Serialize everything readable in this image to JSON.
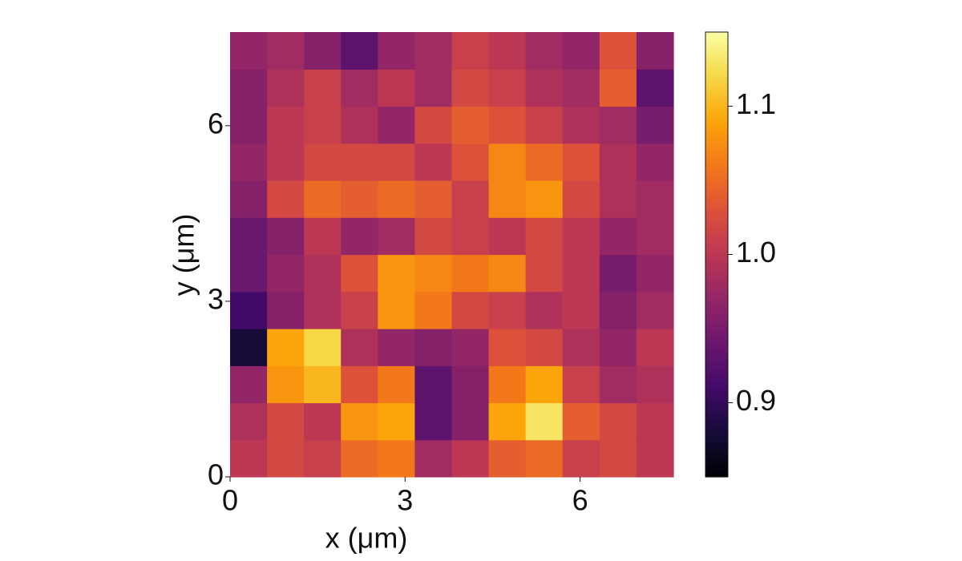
{
  "chart_data": {
    "type": "heatmap",
    "x_label": "x (μm)",
    "y_label": "y (μm)",
    "xlim": [
      0,
      7.6
    ],
    "ylim": [
      0,
      7.6
    ],
    "xticks": [
      0,
      3,
      6
    ],
    "yticks": [
      0,
      3,
      6
    ],
    "colormap": "inferno",
    "clim": [
      0.85,
      1.15
    ],
    "cticks": [
      0.9,
      {
        "value": 1,
        "label": "1.0"
      },
      1.1
    ],
    "z": [
      [
        1.0,
        1.02,
        1.01,
        1.05,
        1.06,
        0.98,
        1.0,
        1.04,
        1.05,
        1.01,
        1.02,
        1.0
      ],
      [
        0.99,
        1.02,
        1.0,
        1.08,
        1.09,
        0.93,
        0.96,
        1.09,
        1.13,
        1.04,
        1.02,
        1.0
      ],
      [
        0.97,
        1.08,
        1.1,
        1.03,
        1.06,
        0.93,
        0.96,
        1.06,
        1.09,
        1.01,
        0.98,
        0.99
      ],
      [
        0.88,
        1.09,
        1.12,
        0.99,
        0.97,
        0.96,
        0.97,
        1.03,
        1.02,
        0.99,
        0.97,
        1.0
      ],
      [
        0.91,
        0.96,
        0.99,
        1.01,
        1.08,
        1.06,
        1.02,
        1.01,
        0.99,
        1.0,
        0.96,
        0.98
      ],
      [
        0.94,
        0.97,
        0.99,
        1.03,
        1.08,
        1.07,
        1.06,
        1.07,
        1.02,
        1.0,
        0.95,
        0.97
      ],
      [
        0.94,
        0.96,
        1.0,
        0.97,
        0.98,
        1.02,
        1.01,
        1.0,
        1.02,
        1.0,
        0.97,
        0.98
      ],
      [
        0.96,
        1.02,
        1.05,
        1.04,
        1.05,
        1.04,
        1.01,
        1.07,
        1.08,
        1.02,
        0.99,
        0.98
      ],
      [
        0.97,
        1.0,
        1.02,
        1.02,
        1.02,
        1.0,
        1.03,
        1.07,
        1.05,
        1.03,
        0.99,
        0.97
      ],
      [
        0.96,
        1.0,
        1.01,
        0.99,
        0.97,
        1.02,
        1.04,
        1.03,
        1.01,
        0.99,
        0.98,
        0.95
      ],
      [
        0.96,
        0.99,
        1.01,
        0.98,
        1.0,
        0.98,
        1.02,
        1.01,
        0.99,
        0.98,
        1.04,
        0.93
      ],
      [
        0.97,
        0.98,
        0.96,
        0.93,
        0.97,
        0.98,
        1.01,
        1.0,
        0.98,
        0.97,
        1.03,
        0.96
      ]
    ]
  }
}
